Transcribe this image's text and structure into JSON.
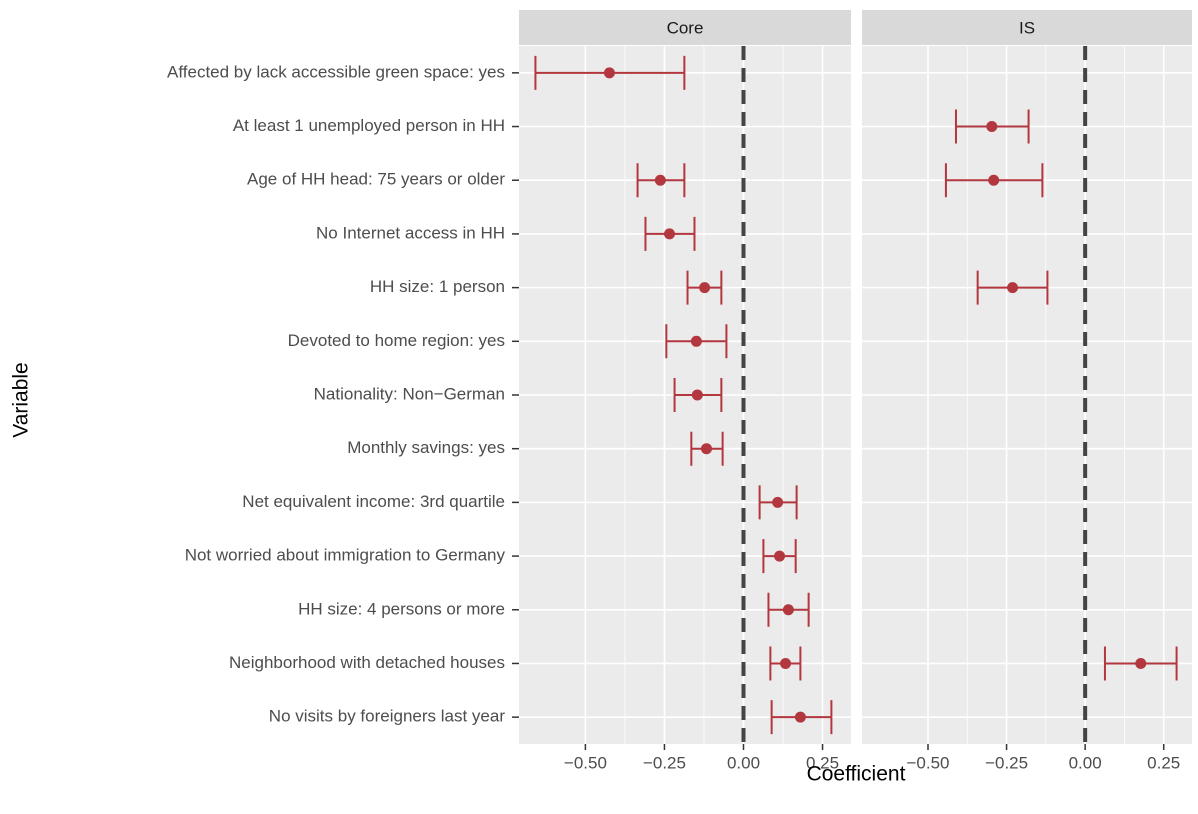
{
  "chart_data": {
    "type": "errorbar",
    "x_label": "Coefficient",
    "y_label": "Variable",
    "categories": [
      "Affected by lack accessible green space: yes",
      "At least 1 unemployed person in HH",
      "Age of HH head: 75 years or older",
      "No Internet access in HH",
      "HH size: 1 person",
      "Devoted to home region: yes",
      "Nationality: Non−German",
      "Monthly savings: yes",
      "Net equivalent income: 3rd quartile",
      "Not worried about immigration to Germany",
      "HH size: 4 persons or more",
      "Neighborhood with detached houses",
      "No visits by foreigners last year"
    ],
    "xlim": [
      -0.71,
      0.34
    ],
    "xticks": [
      {
        "value": -0.5,
        "label": "−0.50"
      },
      {
        "value": -0.25,
        "label": "−0.25"
      },
      {
        "value": 0,
        "label": "0.00"
      },
      {
        "value": 0.25,
        "label": "0.25"
      }
    ],
    "reference_line": 0,
    "color": "#b2373e",
    "grid": true,
    "panels": [
      {
        "name": "Core",
        "values": [
          -0.424,
          null,
          -0.263,
          -0.234,
          -0.123,
          -0.149,
          -0.146,
          -0.117,
          0.108,
          0.114,
          0.142,
          0.133,
          0.18
        ],
        "lower": [
          -0.658,
          null,
          -0.335,
          -0.31,
          -0.177,
          -0.244,
          -0.218,
          -0.165,
          0.051,
          0.063,
          0.079,
          0.085,
          0.089
        ],
        "upper": [
          -0.187,
          null,
          -0.187,
          -0.155,
          -0.07,
          -0.054,
          -0.07,
          -0.066,
          0.168,
          0.165,
          0.206,
          0.18,
          0.278
        ]
      },
      {
        "name": "IS",
        "values": [
          null,
          -0.297,
          -0.291,
          null,
          -0.231,
          null,
          null,
          null,
          null,
          null,
          null,
          0.177,
          null
        ],
        "lower": [
          null,
          -0.411,
          -0.443,
          null,
          -0.342,
          null,
          null,
          null,
          null,
          null,
          null,
          0.063,
          null
        ],
        "upper": [
          null,
          -0.18,
          -0.136,
          null,
          -0.12,
          null,
          null,
          null,
          null,
          null,
          null,
          0.291,
          null
        ]
      }
    ]
  }
}
